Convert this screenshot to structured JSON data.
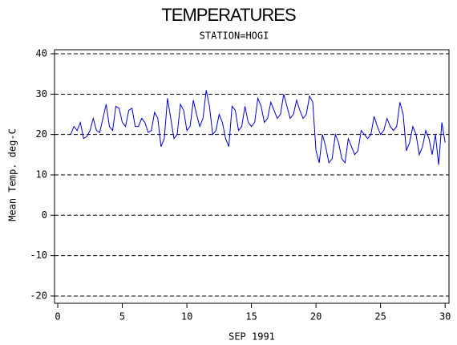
{
  "chart_data": {
    "type": "line",
    "title": "TEMPERATURES",
    "subtitle": "STATION=HOGI",
    "xlabel": "SEP 1991",
    "ylabel": "Mean Temp. deg-C",
    "xlim": [
      -0.25,
      30.3
    ],
    "xticks": [
      0,
      5,
      10,
      15,
      20,
      25,
      30
    ],
    "ylim": [
      -21.8,
      41
    ],
    "yticks": [
      -20,
      -10,
      0,
      10,
      20,
      30,
      40
    ],
    "grid": true,
    "x": [
      1,
      1.25,
      1.5,
      1.75,
      2,
      2.25,
      2.5,
      2.75,
      3,
      3.25,
      3.5,
      3.75,
      4,
      4.25,
      4.5,
      4.75,
      5,
      5.25,
      5.5,
      5.75,
      6,
      6.25,
      6.5,
      6.75,
      7,
      7.25,
      7.5,
      7.75,
      8,
      8.25,
      8.5,
      8.75,
      9,
      9.25,
      9.5,
      9.75,
      10,
      10.25,
      10.5,
      10.75,
      11,
      11.25,
      11.5,
      11.75,
      12,
      12.25,
      12.5,
      12.75,
      13,
      13.25,
      13.5,
      13.75,
      14,
      14.25,
      14.5,
      14.75,
      15,
      15.25,
      15.5,
      15.75,
      16,
      16.25,
      16.5,
      16.75,
      17,
      17.25,
      17.5,
      17.75,
      18,
      18.25,
      18.5,
      18.75,
      19,
      19.25,
      19.5,
      19.75,
      20,
      20.25,
      20.5,
      20.75,
      21,
      21.25,
      21.5,
      21.75,
      22,
      22.25,
      22.5,
      22.75,
      23,
      23.25,
      23.5,
      23.75,
      24,
      24.25,
      24.5,
      24.75,
      25,
      25.25,
      25.5,
      25.75,
      26,
      26.25,
      26.5,
      26.75,
      27,
      27.25,
      27.5,
      27.75,
      28,
      28.25,
      28.5,
      28.75,
      29,
      29.25,
      29.5,
      29.75,
      30
    ],
    "series": [
      {
        "color": "#0000cc",
        "values": [
          20,
          22,
          21,
          23,
          19,
          19.5,
          21,
          24,
          21,
          20.5,
          24,
          27.5,
          22,
          21,
          27,
          26.5,
          23,
          22,
          26,
          26.5,
          22,
          22,
          24,
          23,
          20.5,
          21,
          25.5,
          24,
          17,
          19,
          29,
          24,
          19,
          20,
          27.5,
          26,
          21,
          22,
          28.5,
          25,
          22,
          24,
          31,
          27,
          20,
          21,
          25,
          23,
          19,
          17,
          27,
          26,
          21,
          22,
          27,
          23,
          22,
          23,
          29,
          27,
          23,
          24,
          28,
          26,
          24,
          25,
          30,
          27,
          24,
          25,
          28.5,
          26,
          24,
          25,
          29.5,
          28,
          16,
          13,
          20,
          17,
          13,
          14,
          20,
          18,
          14,
          13,
          19,
          17,
          15,
          16,
          21,
          20,
          19,
          20,
          24.5,
          22,
          20,
          21,
          24,
          22,
          21,
          22,
          28,
          25,
          16,
          18,
          22,
          20,
          15,
          17,
          21,
          19,
          15,
          20,
          12.5,
          23,
          18
        ]
      }
    ]
  }
}
